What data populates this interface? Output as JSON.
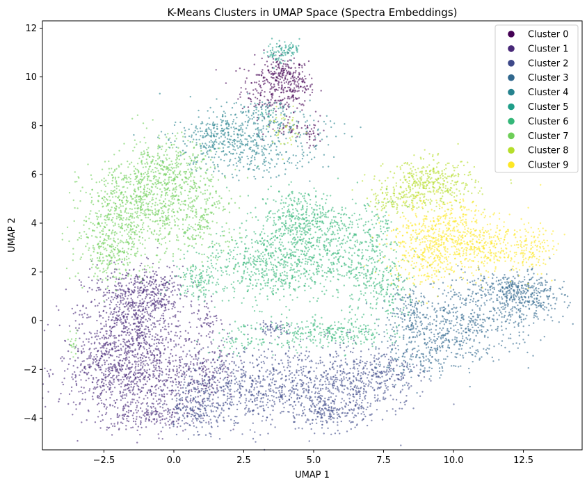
{
  "chart_data": {
    "type": "scatter",
    "title": "K-Means Clusters in UMAP Space (Spectra Embeddings)",
    "xlabel": "UMAP 1",
    "ylabel": "UMAP 2",
    "xlim": [
      -4.7,
      14.6
    ],
    "ylim": [
      -5.3,
      12.3
    ],
    "xticks": [
      -2.5,
      0.0,
      2.5,
      5.0,
      7.5,
      10.0,
      12.5
    ],
    "xtick_labels": [
      "−2.5",
      "0.0",
      "2.5",
      "5.0",
      "7.5",
      "10.0",
      "12.5"
    ],
    "yticks": [
      -4,
      -2,
      0,
      2,
      4,
      6,
      8,
      10,
      12
    ],
    "ytick_labels": [
      "−4",
      "−2",
      "0",
      "2",
      "4",
      "6",
      "8",
      "10",
      "12"
    ],
    "grid": false,
    "legend_position": "top-right",
    "point_alpha": 0.6,
    "series": [
      {
        "name": "Cluster 0",
        "color": "#440154",
        "regions": [
          {
            "cx": 3.6,
            "cy": 9.6,
            "sx": 0.6,
            "sy": 0.6,
            "n": 260
          },
          {
            "cx": 4.4,
            "cy": 9.6,
            "sx": 0.3,
            "sy": 0.4,
            "n": 90
          },
          {
            "cx": 3.9,
            "cy": 10.3,
            "sx": 0.25,
            "sy": 0.3,
            "n": 60
          },
          {
            "cx": 4.3,
            "cy": 7.8,
            "sx": 0.5,
            "sy": 0.15,
            "n": 40
          },
          {
            "cx": 5.0,
            "cy": 7.6,
            "sx": 0.15,
            "sy": 0.3,
            "n": 25
          }
        ]
      },
      {
        "name": "Cluster 1",
        "color": "#482878",
        "regions": [
          {
            "cx": -1.5,
            "cy": 0.2,
            "sx": 0.9,
            "sy": 1.0,
            "n": 650
          },
          {
            "cx": -2.3,
            "cy": -2.0,
            "sx": 0.9,
            "sy": 1.0,
            "n": 550
          },
          {
            "cx": -0.7,
            "cy": -2.3,
            "sx": 1.0,
            "sy": 1.0,
            "n": 450
          },
          {
            "cx": -0.8,
            "cy": 1.2,
            "sx": 0.6,
            "sy": 0.5,
            "n": 200
          },
          {
            "cx": 1.2,
            "cy": -1.7,
            "sx": 0.5,
            "sy": 0.8,
            "n": 160
          },
          {
            "cx": -1.0,
            "cy": -3.9,
            "sx": 0.7,
            "sy": 0.25,
            "n": 130
          },
          {
            "cx": 1.2,
            "cy": 0.1,
            "sx": 0.2,
            "sy": 0.4,
            "n": 40
          }
        ]
      },
      {
        "name": "Cluster 2",
        "color": "#3e4989",
        "regions": [
          {
            "cx": 2.5,
            "cy": -2.8,
            "sx": 1.2,
            "sy": 0.8,
            "n": 500
          },
          {
            "cx": 5.3,
            "cy": -2.7,
            "sx": 1.1,
            "sy": 0.8,
            "n": 500
          },
          {
            "cx": 0.9,
            "cy": -3.5,
            "sx": 0.6,
            "sy": 0.5,
            "n": 200
          },
          {
            "cx": 7.3,
            "cy": -2.3,
            "sx": 0.8,
            "sy": 0.6,
            "n": 260
          },
          {
            "cx": 5.6,
            "cy": -3.8,
            "sx": 0.7,
            "sy": 0.25,
            "n": 150
          },
          {
            "cx": 3.6,
            "cy": -0.3,
            "sx": 0.4,
            "sy": 0.15,
            "n": 60
          }
        ]
      },
      {
        "name": "Cluster 3",
        "color": "#31688e",
        "regions": [
          {
            "cx": 10.5,
            "cy": 0.0,
            "sx": 1.2,
            "sy": 0.8,
            "n": 450
          },
          {
            "cx": 12.6,
            "cy": 0.9,
            "sx": 0.7,
            "sy": 0.5,
            "n": 280
          },
          {
            "cx": 9.0,
            "cy": -1.2,
            "sx": 0.9,
            "sy": 0.6,
            "n": 250
          },
          {
            "cx": 11.8,
            "cy": 1.4,
            "sx": 0.8,
            "sy": 0.3,
            "n": 150
          },
          {
            "cx": 8.3,
            "cy": 0.5,
            "sx": 0.4,
            "sy": 0.5,
            "n": 100
          }
        ]
      },
      {
        "name": "Cluster 4",
        "color": "#26828e",
        "regions": [
          {
            "cx": 2.8,
            "cy": 7.4,
            "sx": 1.4,
            "sy": 0.6,
            "n": 350
          },
          {
            "cx": 1.5,
            "cy": 7.6,
            "sx": 0.6,
            "sy": 0.4,
            "n": 150
          },
          {
            "cx": 3.0,
            "cy": 8.4,
            "sx": 0.7,
            "sy": 0.3,
            "n": 100
          },
          {
            "cx": 2.6,
            "cy": 6.5,
            "sx": 0.9,
            "sy": 0.3,
            "n": 90
          }
        ]
      },
      {
        "name": "Cluster 5",
        "color": "#1f9e89",
        "regions": [
          {
            "cx": 3.8,
            "cy": 11.0,
            "sx": 0.25,
            "sy": 0.25,
            "n": 60
          },
          {
            "cx": 4.2,
            "cy": 11.2,
            "sx": 0.15,
            "sy": 0.15,
            "n": 30
          },
          {
            "cx": 3.4,
            "cy": 8.6,
            "sx": 0.3,
            "sy": 0.2,
            "n": 20
          }
        ]
      },
      {
        "name": "Cluster 6",
        "color": "#35b779",
        "regions": [
          {
            "cx": 3.5,
            "cy": 2.3,
            "sx": 1.2,
            "sy": 0.8,
            "n": 650
          },
          {
            "cx": 4.6,
            "cy": 4.2,
            "sx": 0.8,
            "sy": 0.6,
            "n": 380
          },
          {
            "cx": 6.2,
            "cy": 2.8,
            "sx": 1.0,
            "sy": 0.8,
            "n": 330
          },
          {
            "cx": 5.5,
            "cy": -0.5,
            "sx": 1.0,
            "sy": 0.3,
            "n": 260
          },
          {
            "cx": 7.5,
            "cy": 1.2,
            "sx": 0.6,
            "sy": 0.7,
            "n": 180
          },
          {
            "cx": 0.8,
            "cy": 1.7,
            "sx": 0.4,
            "sy": 0.4,
            "n": 100
          },
          {
            "cx": 2.5,
            "cy": -0.8,
            "sx": 0.6,
            "sy": 0.3,
            "n": 80
          },
          {
            "cx": 7.2,
            "cy": 4.0,
            "sx": 0.5,
            "sy": 0.5,
            "n": 60
          }
        ]
      },
      {
        "name": "Cluster 7",
        "color": "#6ece58",
        "regions": [
          {
            "cx": -1.5,
            "cy": 4.5,
            "sx": 0.9,
            "sy": 1.0,
            "n": 650
          },
          {
            "cx": -0.3,
            "cy": 6.0,
            "sx": 0.8,
            "sy": 0.8,
            "n": 400
          },
          {
            "cx": -2.3,
            "cy": 2.8,
            "sx": 0.6,
            "sy": 0.6,
            "n": 200
          },
          {
            "cx": 0.9,
            "cy": 4.3,
            "sx": 0.7,
            "sy": 0.9,
            "n": 260
          },
          {
            "cx": -3.6,
            "cy": -1.0,
            "sx": 0.1,
            "sy": 0.3,
            "n": 20
          }
        ]
      },
      {
        "name": "Cluster 8",
        "color": "#b5de2b",
        "regions": [
          {
            "cx": 9.2,
            "cy": 5.6,
            "sx": 0.8,
            "sy": 0.5,
            "n": 380
          },
          {
            "cx": 7.9,
            "cy": 5.0,
            "sx": 0.5,
            "sy": 0.3,
            "n": 100
          },
          {
            "cx": 4.0,
            "cy": 7.8,
            "sx": 0.3,
            "sy": 0.4,
            "n": 40
          }
        ]
      },
      {
        "name": "Cluster 9",
        "color": "#fde725",
        "regions": [
          {
            "cx": 9.0,
            "cy": 3.0,
            "sx": 0.7,
            "sy": 0.8,
            "n": 400
          },
          {
            "cx": 11.2,
            "cy": 3.0,
            "sx": 1.0,
            "sy": 0.6,
            "n": 380
          },
          {
            "cx": 10.0,
            "cy": 4.0,
            "sx": 0.6,
            "sy": 0.5,
            "n": 150
          },
          {
            "cx": 12.7,
            "cy": 2.9,
            "sx": 0.4,
            "sy": 0.3,
            "n": 80
          }
        ]
      }
    ]
  }
}
